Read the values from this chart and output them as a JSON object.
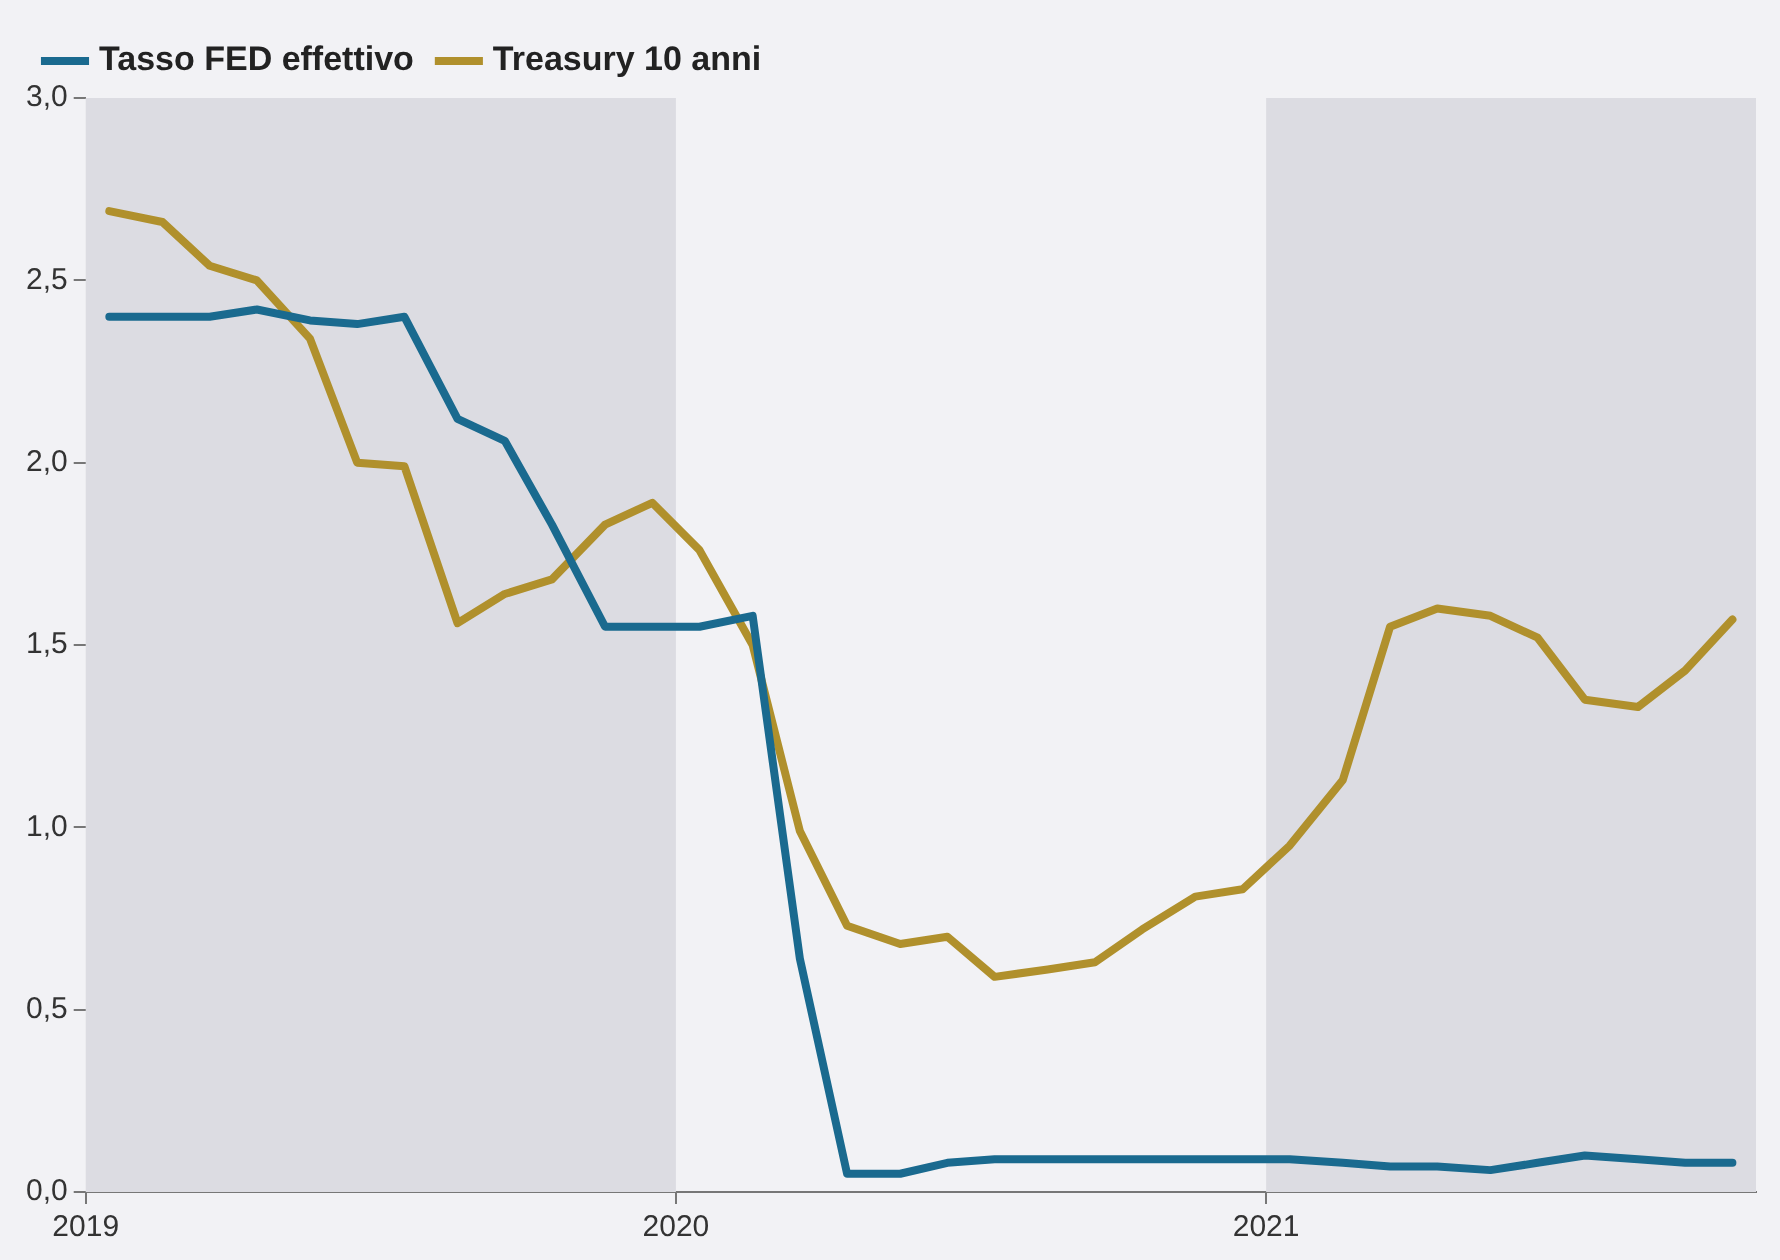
{
  "chart_data": {
    "type": "line",
    "x": [
      2019.04,
      2019.13,
      2019.21,
      2019.29,
      2019.38,
      2019.46,
      2019.54,
      2019.63,
      2019.71,
      2019.79,
      2019.88,
      2019.96,
      2020.04,
      2020.13,
      2020.21,
      2020.29,
      2020.38,
      2020.46,
      2020.54,
      2020.63,
      2020.71,
      2020.79,
      2020.88,
      2020.96,
      2021.04,
      2021.13,
      2021.21,
      2021.29,
      2021.38,
      2021.46,
      2021.54,
      2021.63,
      2021.71,
      2021.79
    ],
    "series": [
      {
        "name": "Tasso FED effettivo",
        "color": "#1a6a8f",
        "values": [
          2.4,
          2.4,
          2.4,
          2.42,
          2.39,
          2.38,
          2.4,
          2.12,
          2.06,
          1.83,
          1.55,
          1.55,
          1.55,
          1.58,
          0.64,
          0.05,
          0.05,
          0.08,
          0.09,
          0.09,
          0.09,
          0.09,
          0.09,
          0.09,
          0.09,
          0.08,
          0.07,
          0.07,
          0.06,
          0.08,
          0.1,
          0.09,
          0.08,
          0.08
        ]
      },
      {
        "name": "Treasury 10 anni",
        "color": "#b0902c",
        "values": [
          2.69,
          2.66,
          2.54,
          2.5,
          2.34,
          2.0,
          1.99,
          1.56,
          1.64,
          1.68,
          1.83,
          1.89,
          1.76,
          1.5,
          0.99,
          0.73,
          0.68,
          0.7,
          0.59,
          0.61,
          0.63,
          0.72,
          0.81,
          0.83,
          0.95,
          1.13,
          1.55,
          1.6,
          1.58,
          1.52,
          1.35,
          1.33,
          1.43,
          1.57
        ]
      }
    ],
    "xlim": [
      2019,
      2021.83
    ],
    "xticks": [
      2019,
      2020,
      2021
    ],
    "ylim": [
      0,
      3
    ],
    "yticks": [
      {
        "value": 0,
        "label": "0,0"
      },
      {
        "value": 0.5,
        "label": "0,5"
      },
      {
        "value": 1,
        "label": "1,0"
      },
      {
        "value": 1.5,
        "label": "1,5"
      },
      {
        "value": 2,
        "label": "2,0"
      },
      {
        "value": 2.5,
        "label": "2,5"
      },
      {
        "value": 3,
        "label": "3,0"
      }
    ],
    "bands": [
      {
        "axis": "x",
        "from": 2019,
        "to": 2020,
        "color": "#dcdce2"
      },
      {
        "axis": "x",
        "from": 2021,
        "to": 2021.83,
        "color": "#dcdce2"
      }
    ],
    "grid": false,
    "legend": "top left",
    "marker": "none",
    "line_style": "solid"
  }
}
